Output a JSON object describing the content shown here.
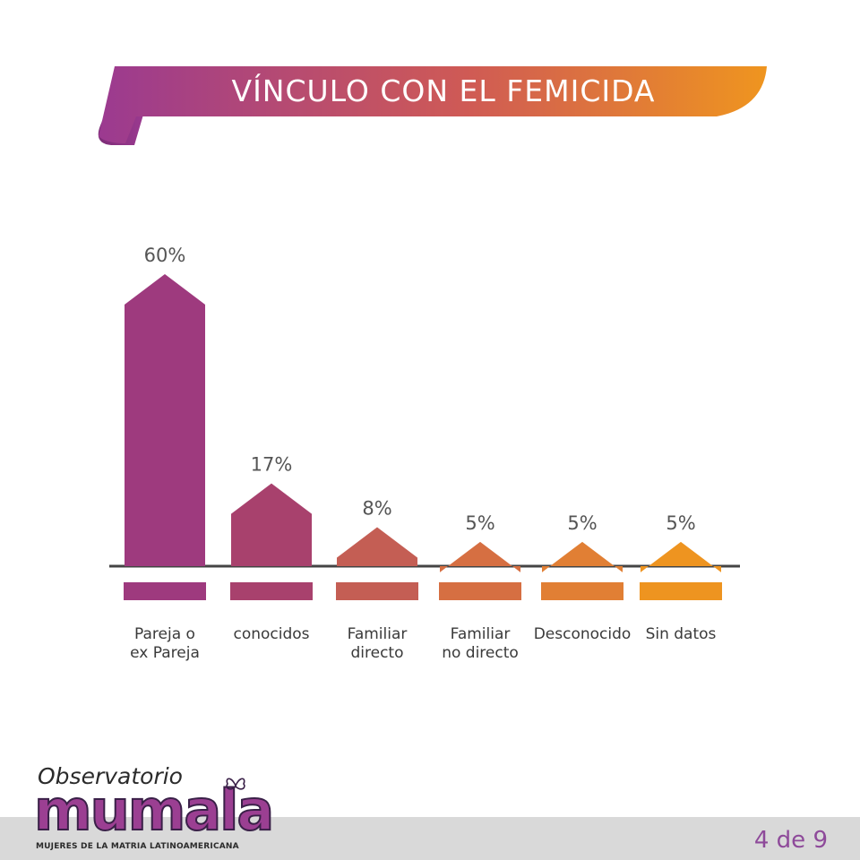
{
  "header": {
    "title": "VÍNCULO CON EL FEMICIDA"
  },
  "chart_data": {
    "type": "bar",
    "title": "VÍNCULO CON EL FEMICIDA",
    "categories": [
      "Pareja o\nex Pareja",
      "conocidos",
      "Familiar\ndirecto",
      "Familiar\nno directo",
      "Desconocido",
      "Sin datos"
    ],
    "values": [
      60,
      17,
      8,
      5,
      5,
      5
    ],
    "value_labels": [
      "60%",
      "17%",
      "8%",
      "5%",
      "5%",
      "5%"
    ],
    "unit": "%",
    "colors": [
      "#9e3a7e",
      "#a8416d",
      "#c45e54",
      "#d66f42",
      "#e17f34",
      "#ee9420"
    ],
    "ylim": [
      0,
      60
    ],
    "grid": false,
    "legend": "none"
  },
  "footer": {
    "page_indicator": "4 de 9"
  },
  "logo": {
    "line1": "Observatorio",
    "line2": "mumala",
    "subtitle": "MUJERES DE LA MATRIA LATINOAMERICANA"
  },
  "theme": {
    "gradient_start": "#9b3a90",
    "gradient_mid": "#c9594d",
    "gradient_end": "#ee9420",
    "axis_color": "#444444",
    "label_color": "#555555"
  }
}
